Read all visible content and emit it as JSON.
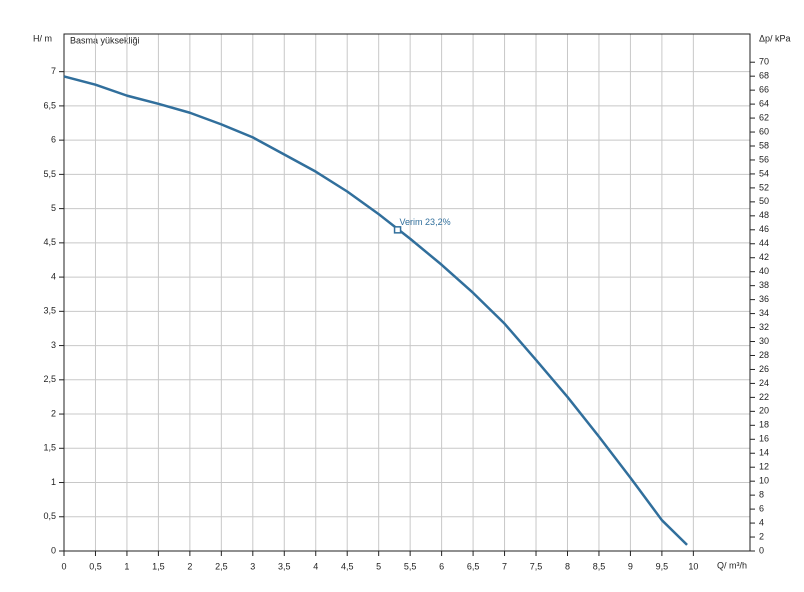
{
  "chart_data": {
    "type": "line",
    "title": "Basma yüksekliği",
    "y_label": "H/ m",
    "y2_label": "Δp/ kPa",
    "x_label": "Q/ m³/h",
    "xlim": [
      0,
      10.9
    ],
    "ylim": [
      0,
      7.55
    ],
    "y2lim": [
      0,
      74.04
    ],
    "xticks": [
      0,
      {
        "value": 0.5,
        "label": "0,5"
      },
      1,
      {
        "value": 1.5,
        "label": "1,5"
      },
      2,
      {
        "value": 2.5,
        "label": "2,5"
      },
      3,
      {
        "value": 3.5,
        "label": "3,5"
      },
      4,
      {
        "value": 4.5,
        "label": "4,5"
      },
      5,
      {
        "value": 5.5,
        "label": "5,5"
      },
      6,
      {
        "value": 6.5,
        "label": "6,5"
      },
      7,
      {
        "value": 7.5,
        "label": "7,5"
      },
      8,
      {
        "value": 8.5,
        "label": "8,5"
      },
      9,
      {
        "value": 9.5,
        "label": "9,5"
      },
      10
    ],
    "yticks": [
      0,
      {
        "value": 0.5,
        "label": "0,5"
      },
      1,
      {
        "value": 1.5,
        "label": "1,5"
      },
      2,
      {
        "value": 2.5,
        "label": "2,5"
      },
      3,
      {
        "value": 3.5,
        "label": "3,5"
      },
      4,
      {
        "value": 4.5,
        "label": "4,5"
      },
      5,
      {
        "value": 5.5,
        "label": "5,5"
      },
      6,
      {
        "value": 6.5,
        "label": "6,5"
      },
      7
    ],
    "y2ticks": [
      0,
      2,
      4,
      6,
      8,
      10,
      12,
      14,
      16,
      18,
      20,
      22,
      24,
      26,
      28,
      30,
      32,
      34,
      36,
      38,
      40,
      42,
      44,
      46,
      48,
      50,
      52,
      54,
      56,
      58,
      60,
      62,
      64,
      66,
      68,
      70
    ],
    "grid": true,
    "series": [
      {
        "color": "#316f9c",
        "x": [
          0,
          0.5,
          1,
          1.5,
          2,
          2.5,
          3,
          3.5,
          4,
          4.5,
          5,
          5.5,
          6,
          6.5,
          7,
          7.5,
          8,
          8.5,
          9,
          9.5,
          9.9
        ],
        "values": [
          6.93,
          6.81,
          6.65,
          6.53,
          6.4,
          6.23,
          6.04,
          5.79,
          5.54,
          5.25,
          4.92,
          4.56,
          4.18,
          3.77,
          3.32,
          2.79,
          2.25,
          1.67,
          1.07,
          0.45,
          0.09
        ]
      }
    ],
    "annotation": {
      "text": "Verim 23,2%",
      "x": 5.3,
      "y": 4.69
    }
  }
}
